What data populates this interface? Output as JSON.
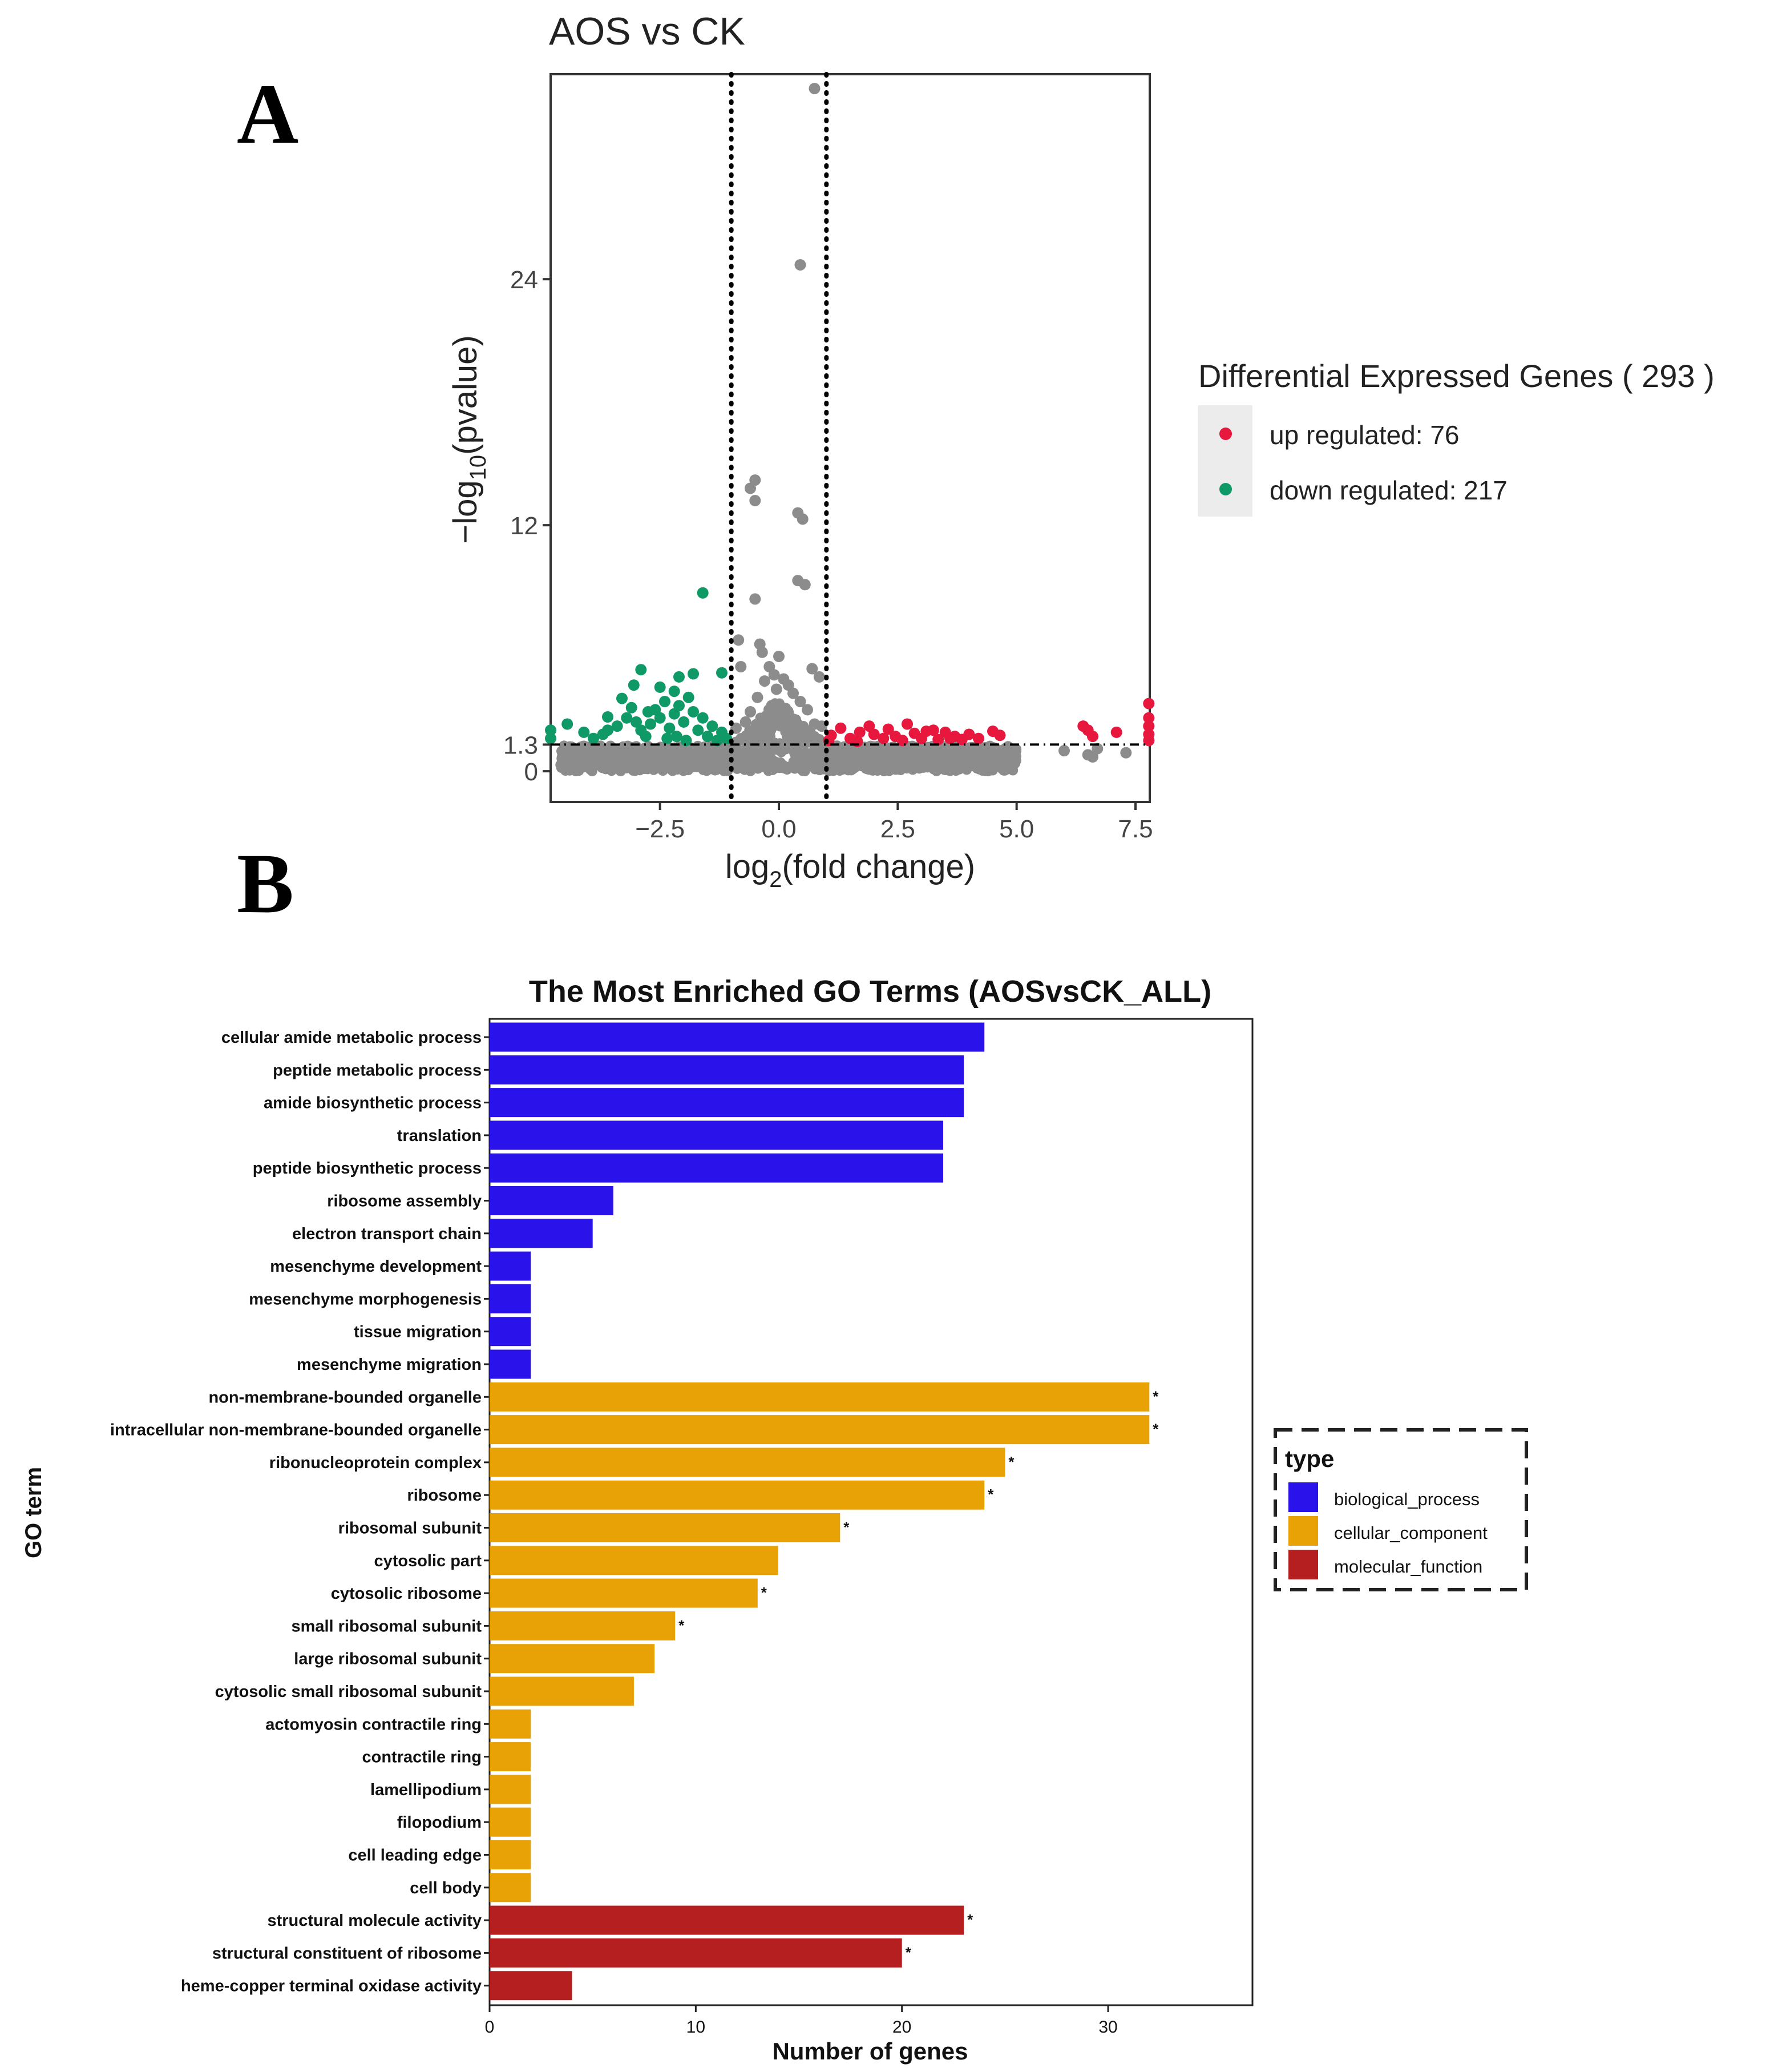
{
  "figure": {
    "panel_a_letter": "A",
    "panel_b_letter": "B"
  },
  "colors": {
    "up": "#e8173d",
    "down": "#0f9966",
    "ns": "#8c8c8c",
    "biological_process": "#2a12ea",
    "cellular_component": "#e8a205",
    "molecular_function": "#b51f1f",
    "legend_bg": "#ececec"
  },
  "chart_data": [
    {
      "type": "scatter",
      "title": "AOS vs CK",
      "xlabel": "log2(fold change)",
      "xlabel_main": "log",
      "xlabel_sub": "2",
      "xlabel_rest": "(fold change)",
      "ylabel": "−log10(pvalue)",
      "ylabel_main": "−log",
      "ylabel_sub": "10",
      "ylabel_rest": "(pvalue)",
      "xlim": [
        -4.8,
        7.8
      ],
      "ylim": [
        -1.5,
        34.0
      ],
      "x_ticks": [
        -2.5,
        0.0,
        2.5,
        5.0,
        7.5
      ],
      "x_tick_labels": [
        "−2.5",
        "0.0",
        "2.5",
        "5.0",
        "7.5"
      ],
      "y_ticks": [
        0,
        1.3,
        12,
        24
      ],
      "y_tick_labels": [
        "0",
        "1.3",
        "12",
        "24"
      ],
      "vlines": [
        -1,
        1
      ],
      "hline": 1.3,
      "grid": false,
      "legend": {
        "title": "Differential Expressed Genes ( 293 )",
        "placement": "right",
        "entries": [
          {
            "label": "up regulated: 76",
            "color_key": "up"
          },
          {
            "label": "down regulated: 217",
            "color_key": "down"
          }
        ]
      },
      "series": [
        {
          "name": "up regulated",
          "color_key": "up",
          "points": [
            [
              1.05,
              1.5
            ],
            [
              1.1,
              1.75
            ],
            [
              1.3,
              2.1
            ],
            [
              1.5,
              1.6
            ],
            [
              1.7,
              1.9
            ],
            [
              1.65,
              1.45
            ],
            [
              1.9,
              2.2
            ],
            [
              2.0,
              1.8
            ],
            [
              2.2,
              1.6
            ],
            [
              2.3,
              2.05
            ],
            [
              2.45,
              1.7
            ],
            [
              2.6,
              1.5
            ],
            [
              2.7,
              2.3
            ],
            [
              2.85,
              1.85
            ],
            [
              3.0,
              1.6
            ],
            [
              3.1,
              1.95
            ],
            [
              3.25,
              2.0
            ],
            [
              3.35,
              1.55
            ],
            [
              3.5,
              1.9
            ],
            [
              3.6,
              1.6
            ],
            [
              3.7,
              1.7
            ],
            [
              3.85,
              1.55
            ],
            [
              4.0,
              1.8
            ],
            [
              4.2,
              1.6
            ],
            [
              4.5,
              1.95
            ],
            [
              4.65,
              1.75
            ],
            [
              6.4,
              2.2
            ],
            [
              6.5,
              2.0
            ],
            [
              6.6,
              1.7
            ],
            [
              7.1,
              1.9
            ],
            [
              7.78,
              3.3
            ],
            [
              7.78,
              2.6
            ],
            [
              7.78,
              2.2
            ],
            [
              7.78,
              1.8
            ],
            [
              7.78,
              1.5
            ]
          ]
        },
        {
          "name": "down regulated",
          "color_key": "down",
          "points": [
            [
              -1.6,
              8.7
            ],
            [
              -2.9,
              4.95
            ],
            [
              -3.05,
              4.2
            ],
            [
              -2.1,
              4.6
            ],
            [
              -1.8,
              4.75
            ],
            [
              -1.2,
              4.8
            ],
            [
              -3.3,
              3.55
            ],
            [
              -2.5,
              4.1
            ],
            [
              -2.2,
              3.9
            ],
            [
              -3.6,
              2.65
            ],
            [
              -4.45,
              2.3
            ],
            [
              -4.1,
              1.9
            ],
            [
              -3.9,
              1.6
            ],
            [
              -3.7,
              1.8
            ],
            [
              -3.6,
              2.0
            ],
            [
              -3.4,
              2.2
            ],
            [
              -3.2,
              2.6
            ],
            [
              -3.1,
              3.1
            ],
            [
              -3.0,
              2.4
            ],
            [
              -2.9,
              2.0
            ],
            [
              -2.8,
              1.7
            ],
            [
              -2.7,
              2.3
            ],
            [
              -2.6,
              3.0
            ],
            [
              -2.5,
              2.6
            ],
            [
              -2.4,
              3.4
            ],
            [
              -2.3,
              2.1
            ],
            [
              -2.2,
              2.8
            ],
            [
              -2.1,
              3.2
            ],
            [
              -2.0,
              2.4
            ],
            [
              -1.9,
              3.6
            ],
            [
              -1.8,
              2.9
            ],
            [
              -1.7,
              2.0
            ],
            [
              -1.6,
              2.6
            ],
            [
              -1.5,
              1.7
            ],
            [
              -1.4,
              2.2
            ],
            [
              -1.3,
              1.5
            ],
            [
              -1.2,
              1.9
            ],
            [
              -1.1,
              1.6
            ],
            [
              -2.35,
              1.6
            ],
            [
              -2.75,
              2.9
            ],
            [
              -1.95,
              1.5
            ],
            [
              -2.15,
              1.7
            ],
            [
              -4.8,
              2.0
            ],
            [
              -4.8,
              1.6
            ]
          ]
        },
        {
          "name": "not significant",
          "color_key": "ns",
          "points": [
            [
              0.75,
              33.3
            ],
            [
              0.45,
              24.7
            ],
            [
              -0.5,
              14.2
            ],
            [
              -0.6,
              13.8
            ],
            [
              -0.5,
              13.2
            ],
            [
              0.4,
              12.6
            ],
            [
              0.5,
              12.3
            ],
            [
              0.4,
              9.3
            ],
            [
              0.55,
              9.1
            ],
            [
              -0.5,
              8.4
            ],
            [
              -0.85,
              6.4
            ],
            [
              -0.4,
              6.2
            ],
            [
              -0.35,
              5.8
            ],
            [
              -0.2,
              5.1
            ],
            [
              -0.1,
              4.7
            ],
            [
              0.1,
              4.5
            ],
            [
              -0.8,
              5.1
            ],
            [
              0.7,
              5.0
            ],
            [
              0.85,
              4.6
            ],
            [
              0.0,
              5.6
            ],
            [
              -0.3,
              4.4
            ],
            [
              0.2,
              4.2
            ],
            [
              -0.05,
              4.0
            ],
            [
              0.3,
              3.8
            ],
            [
              -0.45,
              3.6
            ],
            [
              0.45,
              3.4
            ],
            [
              -0.15,
              3.2
            ],
            [
              0.6,
              3.0
            ],
            [
              -0.6,
              2.9
            ],
            [
              0.05,
              2.8
            ],
            [
              -0.25,
              2.6
            ],
            [
              0.35,
              2.5
            ],
            [
              -0.7,
              2.4
            ],
            [
              0.75,
              2.3
            ],
            [
              0.9,
              2.2
            ],
            [
              -0.9,
              2.1
            ],
            [
              0.15,
              2.0
            ],
            [
              -0.4,
              1.9
            ],
            [
              0.5,
              1.8
            ],
            [
              6.5,
              0.8
            ],
            [
              6.6,
              0.7
            ],
            [
              6.7,
              1.1
            ],
            [
              6.0,
              1.0
            ],
            [
              7.3,
              0.9
            ]
          ]
        }
      ]
    },
    {
      "type": "bar",
      "orientation": "horizontal",
      "title": "The Most Enriched GO Terms (AOSvsCK_ALL)",
      "xlabel": "Number of genes",
      "ylabel": "GO term",
      "xlim": [
        0,
        37
      ],
      "x_ticks": [
        0,
        10,
        20,
        30
      ],
      "x_tick_labels": [
        "0",
        "10",
        "20",
        "30"
      ],
      "grid": false,
      "legend": {
        "title": "type",
        "placement": "right",
        "entries": [
          {
            "label": "biological_process",
            "color_key": "biological_process"
          },
          {
            "label": "cellular_component",
            "color_key": "cellular_component"
          },
          {
            "label": "molecular_function",
            "color_key": "molecular_function"
          }
        ]
      },
      "significance_marker": "*",
      "categories": [
        "cellular amide metabolic process",
        "peptide metabolic process",
        "amide biosynthetic process",
        "translation",
        "peptide biosynthetic process",
        "ribosome assembly",
        "electron transport chain",
        "mesenchyme development",
        "mesenchyme morphogenesis",
        "tissue migration",
        "mesenchyme migration",
        "non-membrane-bounded organelle",
        "intracellular non-membrane-bounded organelle",
        "ribonucleoprotein complex",
        "ribosome",
        "ribosomal subunit",
        "cytosolic part",
        "cytosolic ribosome",
        "small ribosomal subunit",
        "large ribosomal subunit",
        "cytosolic small ribosomal subunit",
        "actomyosin contractile ring",
        "contractile ring",
        "lamellipodium",
        "filopodium",
        "cell leading edge",
        "cell body",
        "structural molecule activity",
        "structural constituent of ribosome",
        "heme-copper terminal oxidase activity"
      ],
      "values": [
        24,
        23,
        23,
        22,
        22,
        6,
        5,
        2,
        2,
        2,
        2,
        32,
        32,
        25,
        24,
        17,
        14,
        13,
        9,
        8,
        7,
        2,
        2,
        2,
        2,
        2,
        2,
        23,
        20,
        4
      ],
      "types": [
        "biological_process",
        "biological_process",
        "biological_process",
        "biological_process",
        "biological_process",
        "biological_process",
        "biological_process",
        "biological_process",
        "biological_process",
        "biological_process",
        "biological_process",
        "cellular_component",
        "cellular_component",
        "cellular_component",
        "cellular_component",
        "cellular_component",
        "cellular_component",
        "cellular_component",
        "cellular_component",
        "cellular_component",
        "cellular_component",
        "cellular_component",
        "cellular_component",
        "cellular_component",
        "cellular_component",
        "cellular_component",
        "cellular_component",
        "molecular_function",
        "molecular_function",
        "molecular_function"
      ],
      "significant": [
        false,
        false,
        false,
        false,
        false,
        false,
        false,
        false,
        false,
        false,
        false,
        true,
        true,
        true,
        true,
        true,
        false,
        true,
        true,
        false,
        false,
        false,
        false,
        false,
        false,
        false,
        false,
        true,
        true,
        false
      ]
    }
  ]
}
